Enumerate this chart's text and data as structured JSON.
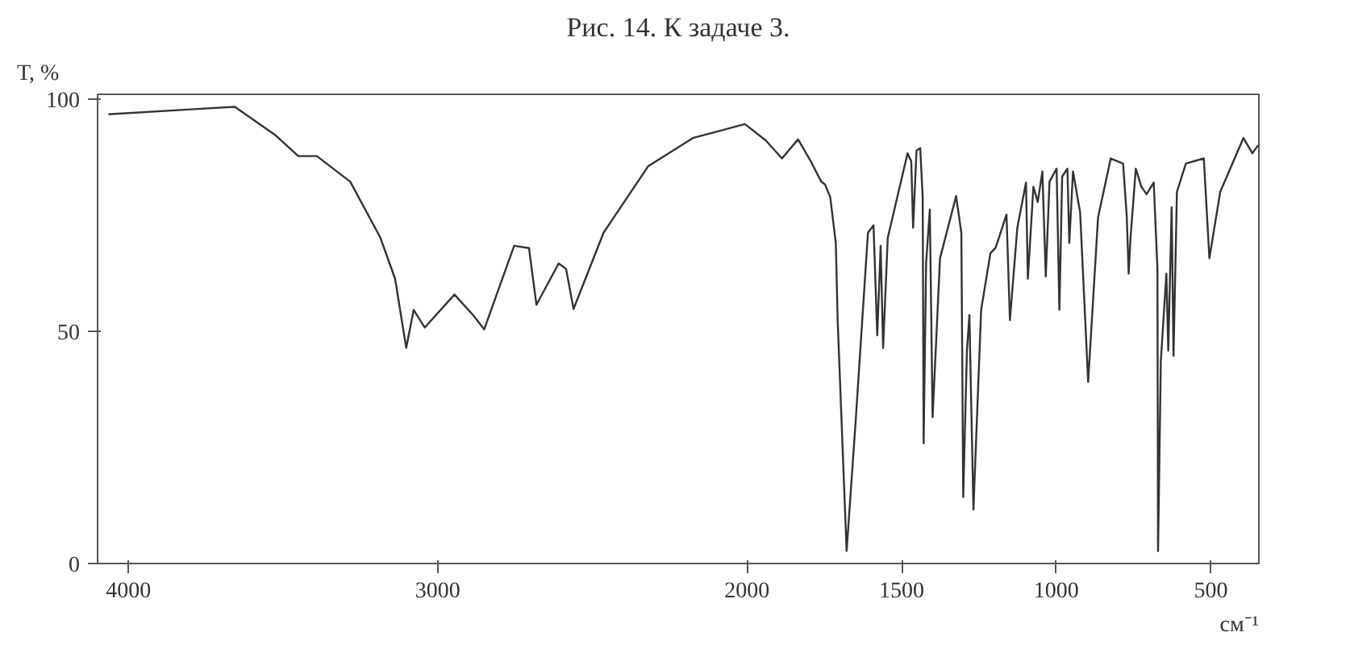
{
  "chart_data": {
    "type": "line",
    "title": "Рис. 14. К задаче 3.",
    "xlabel": "см⁻¹",
    "ylabel": "T, %",
    "xlim": [
      4100,
      345
    ],
    "ylim": [
      0,
      101
    ],
    "xticks": [
      4000,
      3000,
      2000,
      1500,
      1000,
      500
    ],
    "yticks": [
      0,
      50,
      100
    ],
    "grid": false,
    "marker": "none",
    "line_style": "solid",
    "x": [
      4065,
      3764,
      3656,
      3523,
      3451,
      3391,
      3283,
      3186,
      3138,
      3102,
      3078,
      3042,
      2946,
      2886,
      2850,
      2753,
      2705,
      2681,
      2609,
      2585,
      2561,
      2464,
      2320,
      2175,
      2079,
      2007,
      1940,
      1887,
      1835,
      1794,
      1760,
      1748,
      1731,
      1713,
      1707,
      1678,
      1649,
      1609,
      1591,
      1579,
      1568,
      1560,
      1545,
      1481,
      1469,
      1463,
      1452,
      1440,
      1432,
      1429,
      1421,
      1409,
      1400,
      1376,
      1324,
      1307,
      1301,
      1289,
      1281,
      1268,
      1243,
      1213,
      1196,
      1161,
      1150,
      1126,
      1098,
      1092,
      1074,
      1060,
      1045,
      1034,
      1022,
      999,
      990,
      981,
      964,
      958,
      946,
      923,
      897,
      865,
      824,
      784,
      772,
      766,
      760,
      743,
      725,
      708,
      685,
      673,
      671,
      662,
      644,
      638,
      627,
      621,
      610,
      581,
      523,
      505,
      470,
      395,
      366,
      348
    ],
    "series": [
      {
        "color": "#333333",
        "values": [
          96.7,
          97.9,
          98.3,
          92.1,
          87.7,
          87.7,
          82.2,
          70.2,
          61.3,
          46.4,
          54.6,
          50.8,
          57.9,
          53.5,
          50.4,
          68.4,
          67.9,
          55.7,
          64.6,
          63.4,
          54.8,
          71.2,
          85.5,
          91.6,
          93.3,
          94.6,
          91.1,
          87.2,
          91.3,
          86.6,
          82.2,
          81.6,
          78.9,
          69,
          52.4,
          2.7,
          30.4,
          71.2,
          72.8,
          49.1,
          68.4,
          46.4,
          70.1,
          88.3,
          86.6,
          72.3,
          88.9,
          89.4,
          78.9,
          25.9,
          64.6,
          76.2,
          31.5,
          65.7,
          79.1,
          71.2,
          14.3,
          45.8,
          53.5,
          11.6,
          54.6,
          66.8,
          68,
          75.1,
          52.4,
          72.3,
          82,
          61.3,
          81.1,
          77.8,
          84.4,
          61.8,
          82.2,
          85,
          54.6,
          83.3,
          85,
          69,
          84.4,
          75.6,
          39.1,
          74.5,
          87.2,
          86.1,
          74.5,
          62.4,
          70.1,
          85,
          81.1,
          79.5,
          82,
          63.5,
          2.7,
          43.6,
          62.4,
          45.8,
          76.7,
          44.7,
          80,
          86.1,
          87.2,
          65.7,
          80,
          91.6,
          88.3,
          90
        ]
      }
    ]
  }
}
